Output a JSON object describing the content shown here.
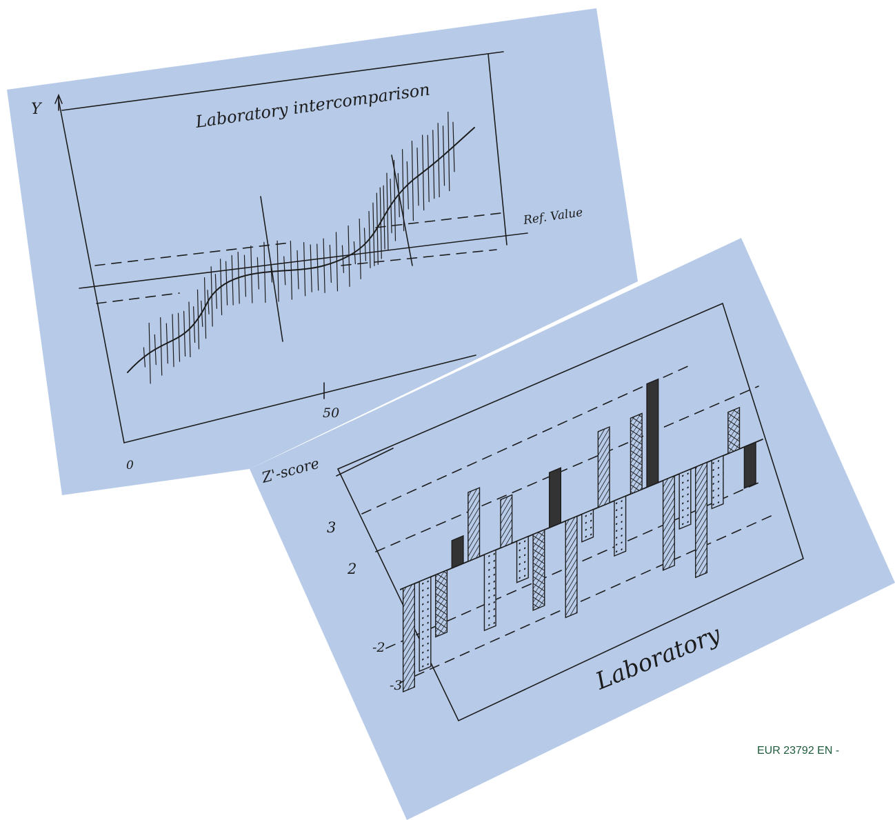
{
  "sketch_top": {
    "axis_y": "Y",
    "title": "Laboratory intercomparison",
    "ref_label": "Ref. Value",
    "tick_mid": "50",
    "tick_origin": "0"
  },
  "sketch_bottom": {
    "axis_y": "Z'-score",
    "ticks": [
      "3",
      "2",
      "-2",
      "-3"
    ],
    "axis_x": "Laboratory"
  },
  "footer": "EUR 23792 EN -"
}
